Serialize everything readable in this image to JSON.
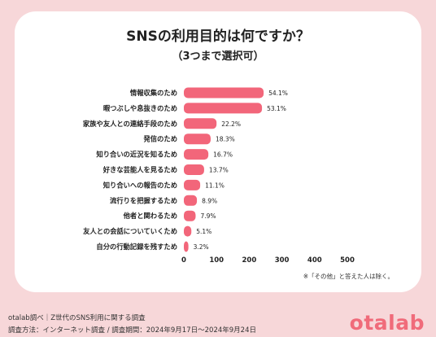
{
  "colors": {
    "bar": "#f2667a",
    "background": "#f7d7d9",
    "card": "#ffffff",
    "brand": "#f06b7a"
  },
  "chart_data": {
    "type": "bar",
    "orientation": "horizontal",
    "title": "SNSの利用目的は何ですか？",
    "subtitle": "（3つまで選択可）",
    "categories": [
      "情報収集のため",
      "暇つぶしや息抜きのため",
      "家族や友人との連絡手段のため",
      "発信のため",
      "知り合いの近況を知るため",
      "好きな芸能人を見るため",
      "知り合いへの報告のため",
      "流行りを把握するため",
      "他者と関わるため",
      "友人との会話についていくため",
      "自分の行動記録を残すため"
    ],
    "values": [
      244,
      239,
      100,
      82,
      75,
      62,
      50,
      40,
      36,
      23,
      14
    ],
    "data_labels": [
      "54.1%",
      "53.1%",
      "22.2%",
      "18.3%",
      "16.7%",
      "13.7%",
      "11.1%",
      "8.9%",
      "7.9%",
      "5.1%",
      "3.2%"
    ],
    "x_ticks": [
      "0",
      "100",
      "200",
      "300",
      "400",
      "500"
    ],
    "xlim": [
      0,
      500
    ],
    "grid": false,
    "legend": "none"
  },
  "note": "※「その他」と答えた人は除く。",
  "footer": {
    "line1": "otalab調べ｜Z世代のSNS利用に関する調査",
    "line2": "調査方法：インターネット調査 / 調査期間：2024年9月17日〜2024年9月24日"
  },
  "logo": "otalab"
}
